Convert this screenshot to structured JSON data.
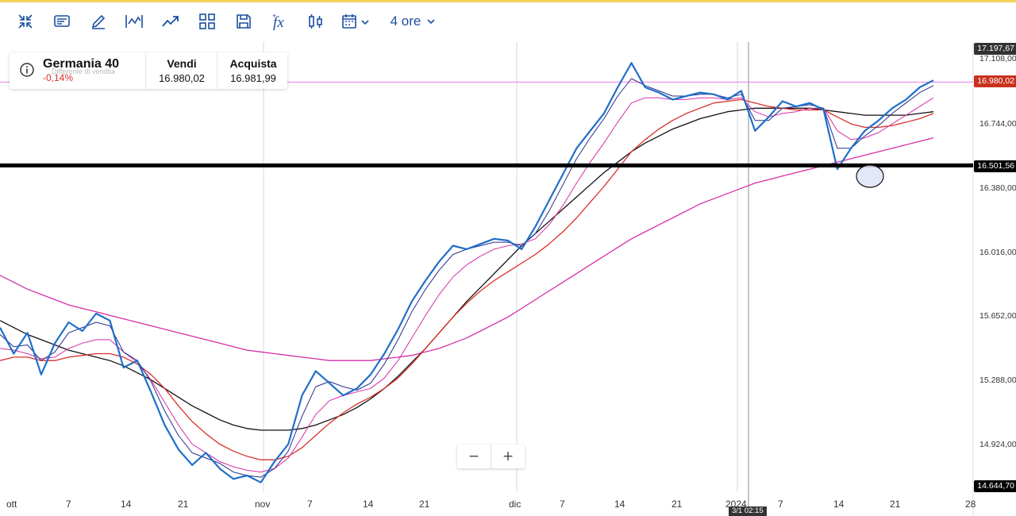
{
  "colors": {
    "accent": "#1b4fa0",
    "top_strip": "#f2d15b",
    "price_blue": "#1f6fc9",
    "ma_red": "#d9302a",
    "ma_black": "#111111",
    "ma_pink": "#d62ea7",
    "ma_thin_navy": "#2a2f8a",
    "level_black": "#000000",
    "negative": "#d9302a",
    "last_price_bg": "#c8321d",
    "bid_line": "#e67ee0"
  },
  "toolbar": {
    "icons": [
      "compress-icon",
      "chart-settings-icon",
      "pencil-icon",
      "line-chart-icon",
      "trend-icon",
      "grid-layout-icon",
      "save-icon",
      "function-icon",
      "candlestick-icon",
      "calendar-icon"
    ],
    "timeframe_label": "4 ore"
  },
  "instrument": {
    "name": "Germania 40",
    "change": "-0,14%",
    "ghost_text": "Differente di vendita",
    "sell_header": "Vendi",
    "sell_value": "16.980,02",
    "buy_header": "Acquista",
    "buy_value": "16.981,99"
  },
  "zoom": {
    "minus": "−",
    "plus": "+"
  },
  "price_axis": {
    "ticks": [
      "17.108,00",
      "16.744,00",
      "16.380,00",
      "16.016,00",
      "15.652,00",
      "15.288,00",
      "14.924,00"
    ],
    "labels": {
      "high": "17.197,67",
      "last": "16.980,02",
      "level": "16.501,56",
      "low": "14.644,70"
    }
  },
  "time_axis": {
    "ticks": [
      "ott",
      "7",
      "14",
      "21",
      "nov",
      "7",
      "14",
      "21",
      "dic",
      "7",
      "14",
      "21",
      "2024",
      "7",
      "14",
      "21",
      "28"
    ],
    "crosshair_label": "3/1 02:15"
  },
  "chart_data": {
    "type": "line",
    "ylim": [
      14624,
      17210
    ],
    "horizontal_level": 16501.56,
    "bid_level": 16980.02,
    "series": [
      {
        "values": [
          15570,
          15420,
          15540,
          15300,
          15480,
          15600,
          15550,
          15650,
          15610,
          15340,
          15380,
          15200,
          15010,
          14870,
          14780,
          14850,
          14760,
          14700,
          14720,
          14680,
          14800,
          14900,
          15180,
          15320,
          15250,
          15180,
          15220,
          15300,
          15420,
          15560,
          15720,
          15840,
          15950,
          16040,
          16020,
          16050,
          16080,
          16070,
          16020,
          16150,
          16300,
          16450,
          16600,
          16700,
          16800,
          16950,
          17090,
          16950,
          16920,
          16880,
          16900,
          16920,
          16910,
          16880,
          16930,
          16700,
          16780,
          16870,
          16840,
          16860,
          16820,
          16480,
          16600,
          16700,
          16760,
          16830,
          16880,
          16950,
          16990
        ]
      },
      {
        "values": [
          15530,
          15460,
          15470,
          15380,
          15430,
          15540,
          15570,
          15600,
          15580,
          15430,
          15380,
          15260,
          15090,
          14950,
          14850,
          14820,
          14790,
          14740,
          14720,
          14710,
          14760,
          14860,
          15060,
          15230,
          15260,
          15230,
          15210,
          15250,
          15360,
          15500,
          15660,
          15790,
          15900,
          15990,
          16020,
          16040,
          16060,
          16060,
          16040,
          16110,
          16240,
          16390,
          16540,
          16660,
          16770,
          16900,
          17000,
          16960,
          16930,
          16900,
          16900,
          16910,
          16910,
          16890,
          16910,
          16760,
          16760,
          16830,
          16840,
          16850,
          16830,
          16600,
          16600,
          16670,
          16730,
          16800,
          16860,
          16920,
          16960
        ]
      },
      {
        "values": [
          15450,
          15440,
          15420,
          15390,
          15400,
          15450,
          15480,
          15500,
          15500,
          15430,
          15370,
          15270,
          15140,
          15010,
          14900,
          14850,
          14800,
          14770,
          14750,
          14740,
          14760,
          14820,
          14940,
          15070,
          15150,
          15180,
          15200,
          15220,
          15280,
          15380,
          15510,
          15640,
          15760,
          15860,
          15930,
          15980,
          16020,
          16040,
          16050,
          16080,
          16160,
          16270,
          16400,
          16520,
          16630,
          16750,
          16860,
          16890,
          16890,
          16880,
          16880,
          16890,
          16890,
          16880,
          16890,
          16810,
          16780,
          16800,
          16810,
          16830,
          16830,
          16700,
          16650,
          16660,
          16690,
          16740,
          16790,
          16840,
          16890
        ]
      },
      {
        "values": [
          15380,
          15400,
          15400,
          15380,
          15380,
          15400,
          15410,
          15420,
          15420,
          15400,
          15360,
          15300,
          15220,
          15120,
          15030,
          14960,
          14900,
          14860,
          14830,
          14810,
          14810,
          14830,
          14880,
          14950,
          15020,
          15080,
          15130,
          15170,
          15220,
          15280,
          15360,
          15450,
          15540,
          15630,
          15710,
          15780,
          15840,
          15890,
          15940,
          15990,
          16050,
          16120,
          16200,
          16290,
          16380,
          16480,
          16580,
          16650,
          16710,
          16760,
          16800,
          16830,
          16860,
          16870,
          16880,
          16860,
          16840,
          16830,
          16820,
          16820,
          16820,
          16780,
          16740,
          16720,
          16720,
          16730,
          16750,
          16770,
          16800
        ]
      },
      {
        "values": [
          15610,
          15570,
          15530,
          15500,
          15470,
          15440,
          15420,
          15400,
          15380,
          15350,
          15310,
          15270,
          15220,
          15170,
          15120,
          15080,
          15040,
          15010,
          14990,
          14980,
          14980,
          14980,
          14990,
          15010,
          15040,
          15070,
          15110,
          15160,
          15220,
          15290,
          15370,
          15450,
          15540,
          15630,
          15720,
          15800,
          15880,
          15960,
          16040,
          16110,
          16180,
          16250,
          16320,
          16390,
          16460,
          16520,
          16580,
          16630,
          16670,
          16710,
          16740,
          16770,
          16790,
          16810,
          16820,
          16830,
          16830,
          16830,
          16830,
          16830,
          16820,
          16810,
          16800,
          16790,
          16790,
          16790,
          16790,
          16800,
          16810
        ]
      },
      {
        "values": [
          15870,
          15830,
          15790,
          15760,
          15730,
          15700,
          15680,
          15660,
          15640,
          15620,
          15600,
          15580,
          15560,
          15540,
          15520,
          15500,
          15480,
          15460,
          15440,
          15430,
          15420,
          15410,
          15400,
          15390,
          15380,
          15380,
          15380,
          15380,
          15390,
          15400,
          15410,
          15430,
          15450,
          15480,
          15510,
          15550,
          15590,
          15630,
          15680,
          15730,
          15780,
          15830,
          15880,
          15930,
          15980,
          16030,
          16080,
          16120,
          16160,
          16200,
          16240,
          16280,
          16310,
          16340,
          16370,
          16400,
          16420,
          16440,
          16460,
          16480,
          16500,
          16520,
          16540,
          16560,
          16580,
          16600,
          16620,
          16640,
          16660
        ]
      }
    ]
  }
}
